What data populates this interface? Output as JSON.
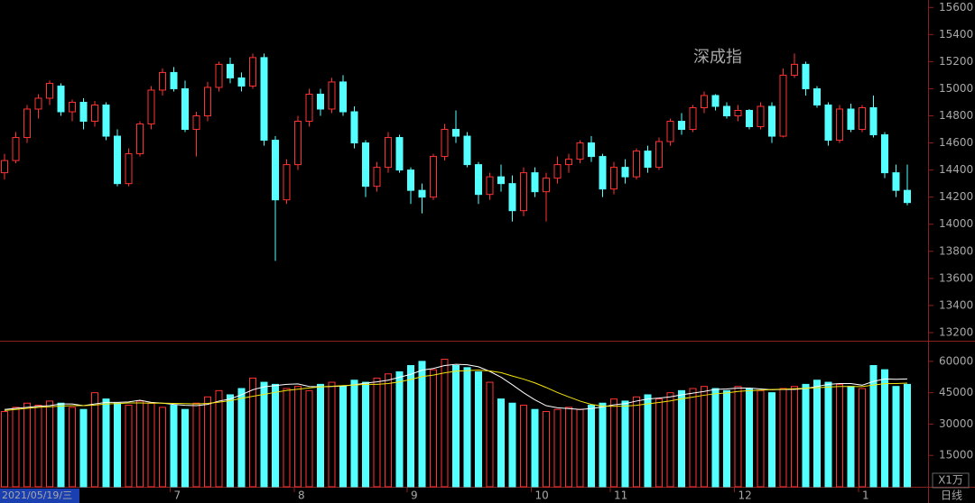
{
  "chart_data": [
    {
      "type": "candlestick",
      "title": "深成指",
      "title_color": "#f5e60a",
      "up_color": "#ff3232",
      "down_color": "#54ffff",
      "categories": [
        "2021/05/19/三",
        null,
        null,
        null,
        null,
        null,
        null,
        null,
        null,
        null,
        null,
        null,
        null,
        null,
        null,
        "7",
        null,
        null,
        null,
        null,
        null,
        null,
        null,
        null,
        null,
        null,
        "8",
        null,
        null,
        null,
        null,
        null,
        null,
        null,
        null,
        null,
        "9",
        null,
        null,
        null,
        null,
        null,
        null,
        null,
        null,
        null,
        null,
        "10",
        null,
        null,
        null,
        null,
        null,
        null,
        "11",
        null,
        null,
        null,
        null,
        null,
        null,
        null,
        null,
        null,
        null,
        "12",
        null,
        null,
        null,
        null,
        null,
        null,
        null,
        null,
        null,
        null,
        "1",
        null,
        null,
        null,
        null
      ],
      "ohlc": [
        [
          14380,
          14520,
          14330,
          14470
        ],
        [
          14470,
          14680,
          14450,
          14640
        ],
        [
          14640,
          14880,
          14600,
          14850
        ],
        [
          14850,
          14960,
          14780,
          14930
        ],
        [
          14930,
          15060,
          14880,
          15040
        ],
        [
          15020,
          15040,
          14800,
          14830
        ],
        [
          14830,
          14920,
          14760,
          14900
        ],
        [
          14900,
          14930,
          14700,
          14760
        ],
        [
          14760,
          14910,
          14720,
          14880
        ],
        [
          14880,
          14900,
          14620,
          14650
        ],
        [
          14650,
          14700,
          14280,
          14300
        ],
        [
          14300,
          14560,
          14280,
          14520
        ],
        [
          14520,
          14760,
          14500,
          14740
        ],
        [
          14740,
          15020,
          14700,
          14990
        ],
        [
          14990,
          15150,
          14950,
          15120
        ],
        [
          15120,
          15160,
          14980,
          15000
        ],
        [
          15000,
          15060,
          14680,
          14700
        ],
        [
          14700,
          14830,
          14500,
          14800
        ],
        [
          14800,
          15050,
          14760,
          15010
        ],
        [
          15010,
          15200,
          14980,
          15180
        ],
        [
          15180,
          15230,
          15040,
          15080
        ],
        [
          15080,
          15120,
          14980,
          15020
        ],
        [
          15020,
          15260,
          15000,
          15230
        ],
        [
          15230,
          15260,
          14580,
          14620
        ],
        [
          14620,
          14650,
          13730,
          14180
        ],
        [
          14180,
          14480,
          14150,
          14440
        ],
        [
          14440,
          14800,
          14400,
          14760
        ],
        [
          14760,
          15000,
          14720,
          14960
        ],
        [
          14960,
          15000,
          14800,
          14850
        ],
        [
          14850,
          15080,
          14820,
          15050
        ],
        [
          15050,
          15100,
          14800,
          14830
        ],
        [
          14830,
          14870,
          14560,
          14600
        ],
        [
          14600,
          14620,
          14200,
          14280
        ],
        [
          14280,
          14460,
          14240,
          14420
        ],
        [
          14420,
          14680,
          14380,
          14640
        ],
        [
          14640,
          14660,
          14380,
          14400
        ],
        [
          14400,
          14420,
          14150,
          14250
        ],
        [
          14250,
          14300,
          14080,
          14200
        ],
        [
          14200,
          14520,
          14180,
          14500
        ],
        [
          14500,
          14740,
          14470,
          14700
        ],
        [
          14700,
          14840,
          14600,
          14650
        ],
        [
          14650,
          14680,
          14420,
          14440
        ],
        [
          14440,
          14460,
          14150,
          14220
        ],
        [
          14220,
          14380,
          14180,
          14350
        ],
        [
          14350,
          14440,
          14240,
          14300
        ],
        [
          14300,
          14360,
          14020,
          14100
        ],
        [
          14100,
          14420,
          14060,
          14380
        ],
        [
          14380,
          14420,
          14200,
          14240
        ],
        [
          14240,
          14380,
          14020,
          14340
        ],
        [
          14340,
          14500,
          14300,
          14440
        ],
        [
          14440,
          14520,
          14380,
          14480
        ],
        [
          14480,
          14620,
          14450,
          14600
        ],
        [
          14600,
          14650,
          14460,
          14500
        ],
        [
          14500,
          14520,
          14200,
          14260
        ],
        [
          14260,
          14460,
          14220,
          14420
        ],
        [
          14420,
          14480,
          14300,
          14350
        ],
        [
          14350,
          14560,
          14330,
          14540
        ],
        [
          14540,
          14580,
          14380,
          14420
        ],
        [
          14420,
          14640,
          14400,
          14610
        ],
        [
          14610,
          14780,
          14580,
          14760
        ],
        [
          14760,
          14820,
          14660,
          14700
        ],
        [
          14700,
          14880,
          14680,
          14860
        ],
        [
          14860,
          14980,
          14820,
          14950
        ],
        [
          14950,
          14960,
          14840,
          14870
        ],
        [
          14870,
          14900,
          14780,
          14800
        ],
        [
          14800,
          14880,
          14760,
          14840
        ],
        [
          14840,
          14850,
          14700,
          14720
        ],
        [
          14720,
          14900,
          14700,
          14870
        ],
        [
          14870,
          14900,
          14600,
          14650
        ],
        [
          14650,
          15150,
          14640,
          15100
        ],
        [
          15100,
          15260,
          15080,
          15180
        ],
        [
          15180,
          15200,
          14950,
          15000
        ],
        [
          15000,
          15020,
          14860,
          14880
        ],
        [
          14880,
          14900,
          14580,
          14620
        ],
        [
          14620,
          14880,
          14600,
          14850
        ],
        [
          14850,
          14890,
          14680,
          14700
        ],
        [
          14700,
          14880,
          14680,
          14860
        ],
        [
          14860,
          14950,
          14640,
          14660
        ],
        [
          14660,
          14680,
          14340,
          14380
        ],
        [
          14380,
          14440,
          14200,
          14250
        ],
        [
          14250,
          14440,
          14140,
          14160
        ]
      ],
      "ylim": [
        13140,
        15655
      ],
      "yticks": [
        13200,
        13400,
        13600,
        13800,
        14000,
        14200,
        14400,
        14600,
        14800,
        15000,
        15200,
        15400,
        15600
      ]
    },
    {
      "type": "bar",
      "unit_label": "X1万",
      "period_label": "日线",
      "values": [
        36000,
        38000,
        40000,
        39000,
        41000,
        40000,
        38000,
        37000,
        45000,
        42000,
        40000,
        39000,
        41000,
        40000,
        38000,
        39000,
        37000,
        40000,
        43000,
        46000,
        44000,
        47000,
        52000,
        50000,
        49000,
        47000,
        48000,
        46000,
        49000,
        50000,
        48000,
        51000,
        50000,
        52000,
        54000,
        55000,
        58000,
        60000,
        56000,
        61000,
        58000,
        57000,
        55000,
        50000,
        42000,
        40000,
        39000,
        37000,
        36000,
        37000,
        38000,
        37000,
        39000,
        40000,
        42000,
        41000,
        43000,
        44000,
        42000,
        45000,
        46000,
        47000,
        48000,
        47000,
        46000,
        48000,
        47000,
        46000,
        45000,
        47000,
        48000,
        49000,
        51000,
        50000,
        49000,
        48000,
        47000,
        58000,
        56000,
        48000,
        49000
      ],
      "series": [
        {
          "color": "#ffffff",
          "values": [
            37000,
            37500,
            38000,
            38500,
            38800,
            39600,
            39600,
            38800,
            39600,
            40400,
            40400,
            40600,
            41400,
            40400,
            40000,
            39400,
            39000,
            38800,
            39400,
            41000,
            42000,
            44000,
            46400,
            47800,
            48400,
            49000,
            49200,
            48000,
            47800,
            48000,
            48200,
            48800,
            49600,
            50200,
            51000,
            52400,
            53800,
            55800,
            56600,
            58000,
            58600,
            58400,
            57400,
            55200,
            52400,
            48800,
            45000,
            41600,
            38800,
            37800,
            37400,
            37000,
            37400,
            38200,
            39200,
            39800,
            41000,
            42000,
            42400,
            43000,
            44000,
            44800,
            45600,
            46600,
            46800,
            47200,
            47200,
            46800,
            46400,
            46600,
            46600,
            47000,
            48000,
            49000,
            49400,
            49400,
            48600,
            50400,
            51600,
            51400,
            51600
          ]
        },
        {
          "color": "#f5e60a",
          "values": [
            36500,
            37000,
            37500,
            38000,
            38300,
            38600,
            38800,
            38800,
            39100,
            39600,
            39800,
            40100,
            40100,
            40000,
            40000,
            39900,
            39800,
            39600,
            39900,
            40500,
            41200,
            42300,
            43300,
            44200,
            45200,
            46100,
            46700,
            47300,
            47800,
            48100,
            48400,
            48700,
            49000,
            49000,
            49400,
            50200,
            51300,
            52700,
            53400,
            54500,
            55300,
            55600,
            55800,
            55400,
            54600,
            53000,
            51500,
            49700,
            47500,
            45100,
            43000,
            41000,
            39400,
            38600,
            38500,
            38600,
            39000,
            39700,
            40300,
            41100,
            42100,
            42900,
            43800,
            44500,
            44900,
            45600,
            46000,
            46200,
            46500,
            46700,
            46900,
            47100,
            47400,
            47700,
            48000,
            48000,
            47900,
            48700,
            49300,
            49400,
            49600
          ]
        }
      ],
      "ylim": [
        0,
        69000
      ],
      "yticks": [
        15000,
        30000,
        45000,
        60000
      ]
    }
  ]
}
